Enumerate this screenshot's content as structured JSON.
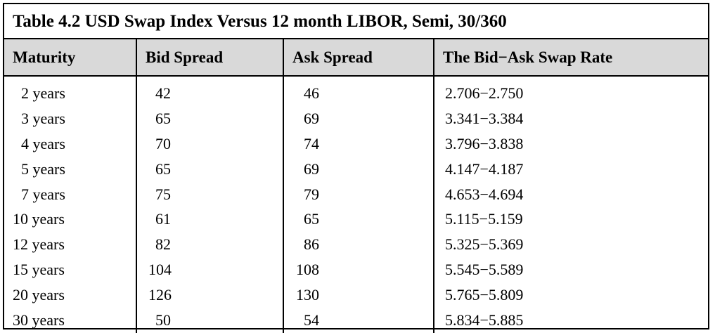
{
  "title": "Table 4.2  USD Swap Index Versus 12 month LIBOR, Semi, 30/360",
  "headers": [
    "Maturity",
    "Bid Spread",
    "Ask Spread",
    "The Bid−Ask Swap Rate"
  ],
  "rows": [
    {
      "maturity": "2 years",
      "bid": "42",
      "ask": "46",
      "rate": "2.706−2.750"
    },
    {
      "maturity": "3 years",
      "bid": "65",
      "ask": "69",
      "rate": "3.341−3.384"
    },
    {
      "maturity": "4 years",
      "bid": "70",
      "ask": "74",
      "rate": "3.796−3.838"
    },
    {
      "maturity": "5 years",
      "bid": "65",
      "ask": "69",
      "rate": "4.147−4.187"
    },
    {
      "maturity": "7 years",
      "bid": "75",
      "ask": "79",
      "rate": "4.653−4.694"
    },
    {
      "maturity": "10 years",
      "bid": "61",
      "ask": "65",
      "rate": "5.115−5.159"
    },
    {
      "maturity": "12 years",
      "bid": "82",
      "ask": "86",
      "rate": "5.325−5.369"
    },
    {
      "maturity": "15 years",
      "bid": "104",
      "ask": "108",
      "rate": "5.545−5.589"
    },
    {
      "maturity": "20 years",
      "bid": "126",
      "ask": "130",
      "rate": "5.765−5.809"
    },
    {
      "maturity": "30 years",
      "bid": "50",
      "ask": "54",
      "rate": "5.834−5.885"
    }
  ]
}
